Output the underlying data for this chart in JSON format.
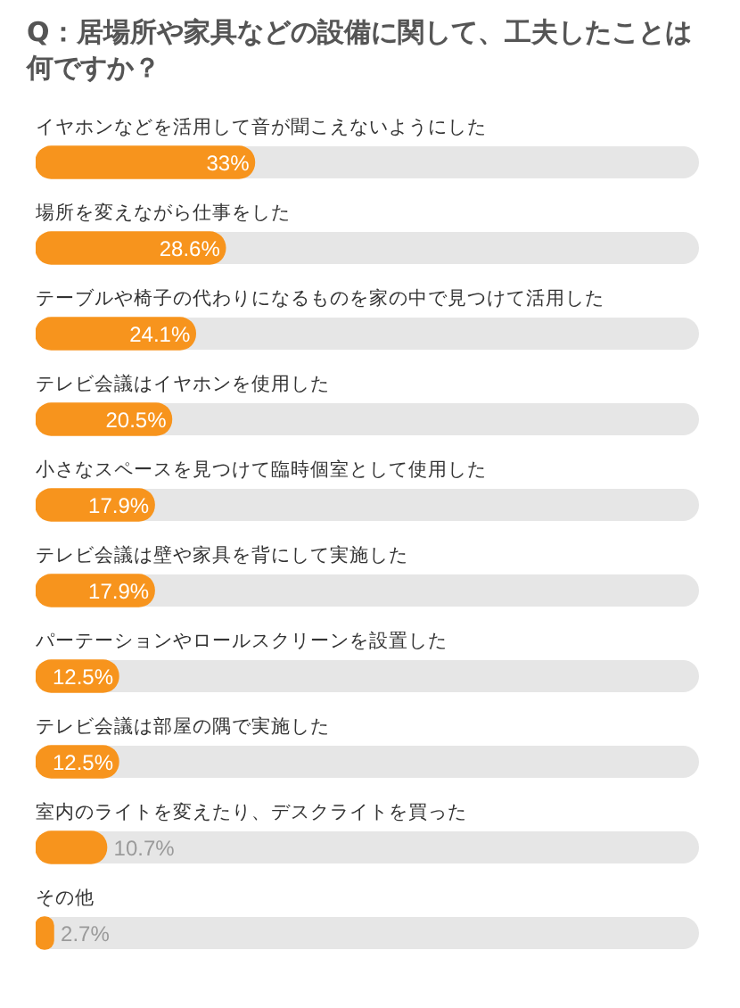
{
  "chart_data": {
    "type": "bar",
    "orientation": "horizontal",
    "title": "Q：居場所や家具などの設備に関して、工夫したことは何ですか？",
    "categories": [
      "イヤホンなどを活用して音が聞こえないようにした",
      "場所を変えながら仕事をした",
      "テーブルや椅子の代わりになるものを家の中で見つけて活用した",
      "テレビ会議はイヤホンを使用した",
      "小さなスペースを見つけて臨時個室として使用した",
      "テレビ会議は壁や家具を背にして実施した",
      "パーテーションやロールスクリーンを設置した",
      "テレビ会議は部屋の隅で実施した",
      "室内のライトを変えたり、デスクライトを買った",
      "その他"
    ],
    "values": [
      33,
      28.6,
      24.1,
      20.5,
      17.9,
      17.9,
      12.5,
      12.5,
      10.7,
      2.7
    ],
    "value_labels": [
      "33%",
      "28.6%",
      "24.1%",
      "20.5%",
      "17.9%",
      "17.9%",
      "12.5%",
      "12.5%",
      "10.7%",
      "2.7%"
    ],
    "color": "#f7941d",
    "xlim": [
      0,
      100
    ],
    "tick_labels": "y"
  }
}
